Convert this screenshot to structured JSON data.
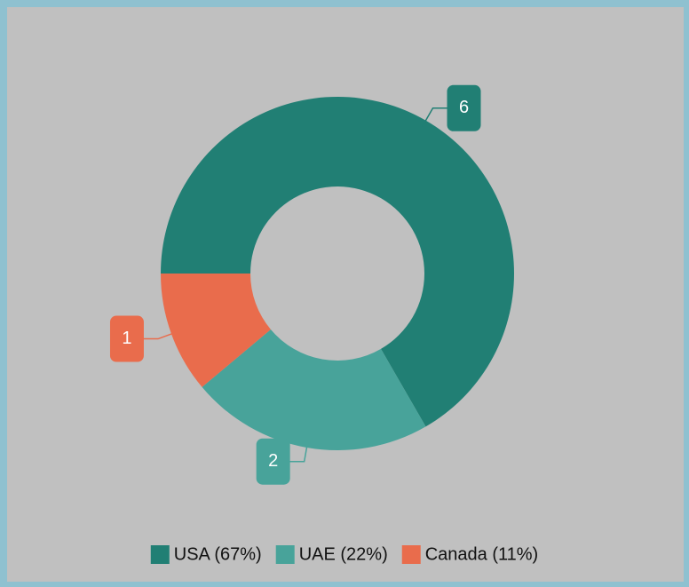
{
  "chart_data": {
    "type": "donut",
    "categories": [
      "USA",
      "UAE",
      "Canada"
    ],
    "values": [
      6,
      2,
      1
    ],
    "colors": [
      "#217f74",
      "#48a39a",
      "#e96c4c"
    ],
    "legend_labels": [
      "USA (67%)",
      "UAE (22%)",
      "Canada (11%)"
    ],
    "legend": "bottom"
  }
}
